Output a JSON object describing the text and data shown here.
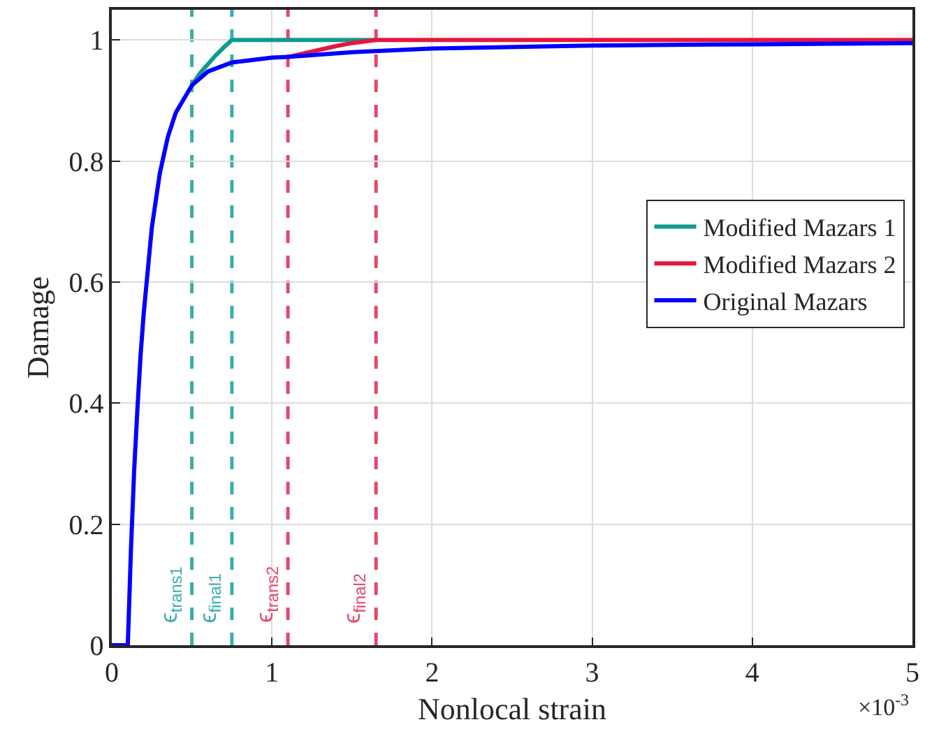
{
  "chart_data": {
    "type": "line",
    "xlabel": "Nonlocal strain",
    "ylabel": "Damage",
    "annotations": [
      "×10$^{-3}$"
    ],
    "series": [
      {
        "name": "Modified Mazars 1",
        "color": "#0f9a90",
        "x": [
          0.5,
          0.55,
          0.6,
          0.65,
          0.7,
          0.75,
          1.65
        ],
        "values": [
          0.925,
          0.945,
          0.96,
          0.975,
          0.988,
          1,
          1
        ]
      },
      {
        "name": "Modified Mazars 2",
        "color": "#e3173f",
        "x": [
          1.1,
          1.2,
          1.3,
          1.4,
          1.5,
          1.65,
          5
        ],
        "values": [
          0.972,
          0.978,
          0.984,
          0.99,
          0.995,
          1,
          1
        ]
      },
      {
        "name": "Original Mazars",
        "color": "#0000ff",
        "x": [
          0,
          0.1,
          0.12,
          0.14,
          0.16,
          0.18,
          0.2,
          0.25,
          0.3,
          0.35,
          0.4,
          0.5,
          0.6,
          0.75,
          1.0,
          1.1,
          1.5,
          2,
          3,
          4,
          5
        ],
        "values": [
          0,
          0,
          0.16,
          0.29,
          0.39,
          0.48,
          0.55,
          0.69,
          0.78,
          0.84,
          0.88,
          0.925,
          0.948,
          0.963,
          0.971,
          0.972,
          0.98,
          0.986,
          0.991,
          0.993,
          0.995
        ]
      }
    ],
    "ref_lines": [
      {
        "axis": "x",
        "value": 0.5,
        "label": "ϵ$_{trans1}$",
        "color": "#3aaea8",
        "line_style": "dashed"
      },
      {
        "axis": "x",
        "value": 0.75,
        "label": "ϵ$_{final1}$",
        "color": "#3aaea8",
        "line_style": "dashed"
      },
      {
        "axis": "x",
        "value": 1.1,
        "label": "ϵ$_{trans2}$",
        "color": "#e5486a",
        "line_style": "dashed"
      },
      {
        "axis": "x",
        "value": 1.65,
        "label": "ϵ$_{final2}$",
        "color": "#e5486a",
        "line_style": "dashed"
      }
    ],
    "xlim": [
      0,
      5
    ],
    "xticks": [
      0,
      1,
      2,
      3,
      4,
      5
    ],
    "ylim": [
      0,
      1.05
    ],
    "yticks": [
      0,
      0.2,
      0.4,
      0.6,
      0.8,
      1
    ],
    "grid": true,
    "legend": "right",
    "marker": "none",
    "line_style": "solid"
  }
}
